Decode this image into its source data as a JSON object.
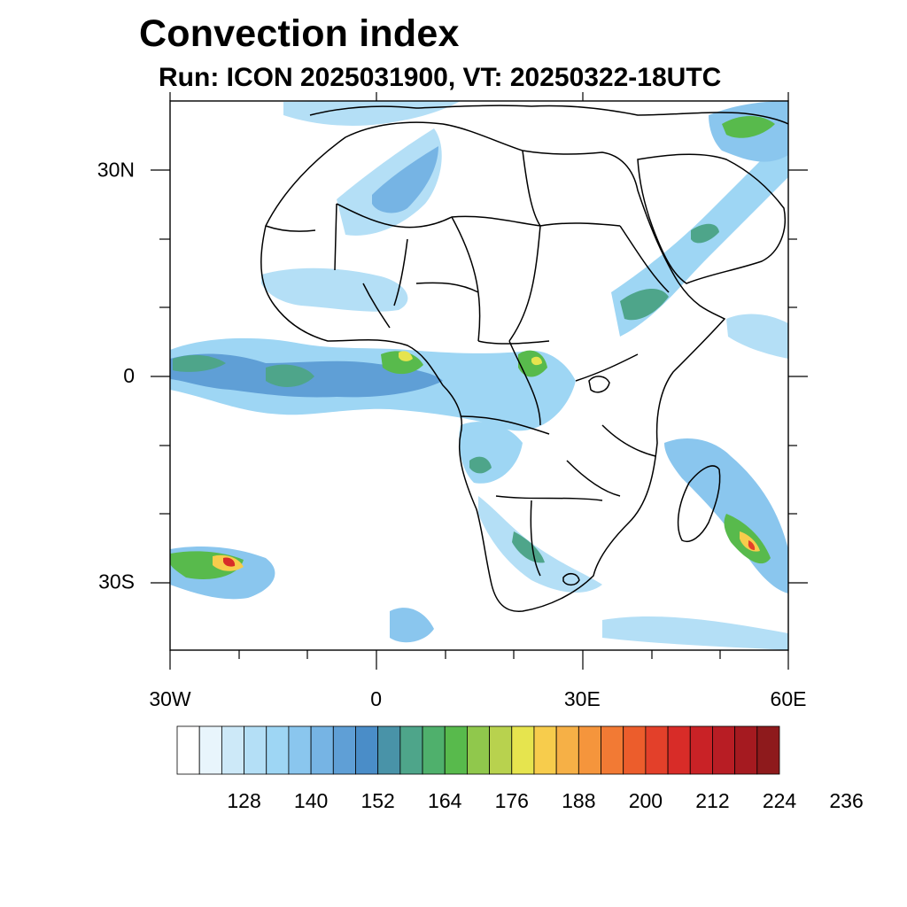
{
  "header": {
    "title": "Convection index",
    "subtitle": "Run: ICON 2025031900,  VT: 20250322-18UTC"
  },
  "axes": {
    "lat_labels": [
      {
        "label": "30N",
        "lat": 30
      },
      {
        "label": "0",
        "lat": 0
      },
      {
        "label": "30S",
        "lat": -30
      }
    ],
    "lon_labels": [
      {
        "label": "30W",
        "lon": -30
      },
      {
        "label": "0",
        "lon": 0
      },
      {
        "label": "30E",
        "lon": 30
      },
      {
        "label": "60E",
        "lon": 60
      }
    ],
    "lon_range": [
      -30,
      60
    ],
    "lat_range": [
      -40,
      40
    ]
  },
  "colorbar": {
    "labels": [
      "128",
      "140",
      "152",
      "164",
      "176",
      "188",
      "200",
      "212",
      "224",
      "236"
    ],
    "colors": [
      "#ffffff",
      "#e8f5fc",
      "#cde9f8",
      "#b4dff6",
      "#9ed6f4",
      "#8ac6ee",
      "#76b4e4",
      "#5f9fd6",
      "#4a8dc8",
      "#4993a8",
      "#4ea58a",
      "#4fb06c",
      "#58ba4c",
      "#90c84c",
      "#b8d24e",
      "#e6e44e",
      "#f7cc4c",
      "#f6b046",
      "#f5953c",
      "#f27a34",
      "#ec5d2c",
      "#e3402a",
      "#d82c28",
      "#c92226",
      "#b81d24",
      "#a51a20",
      "#8e1a1c"
    ]
  }
}
